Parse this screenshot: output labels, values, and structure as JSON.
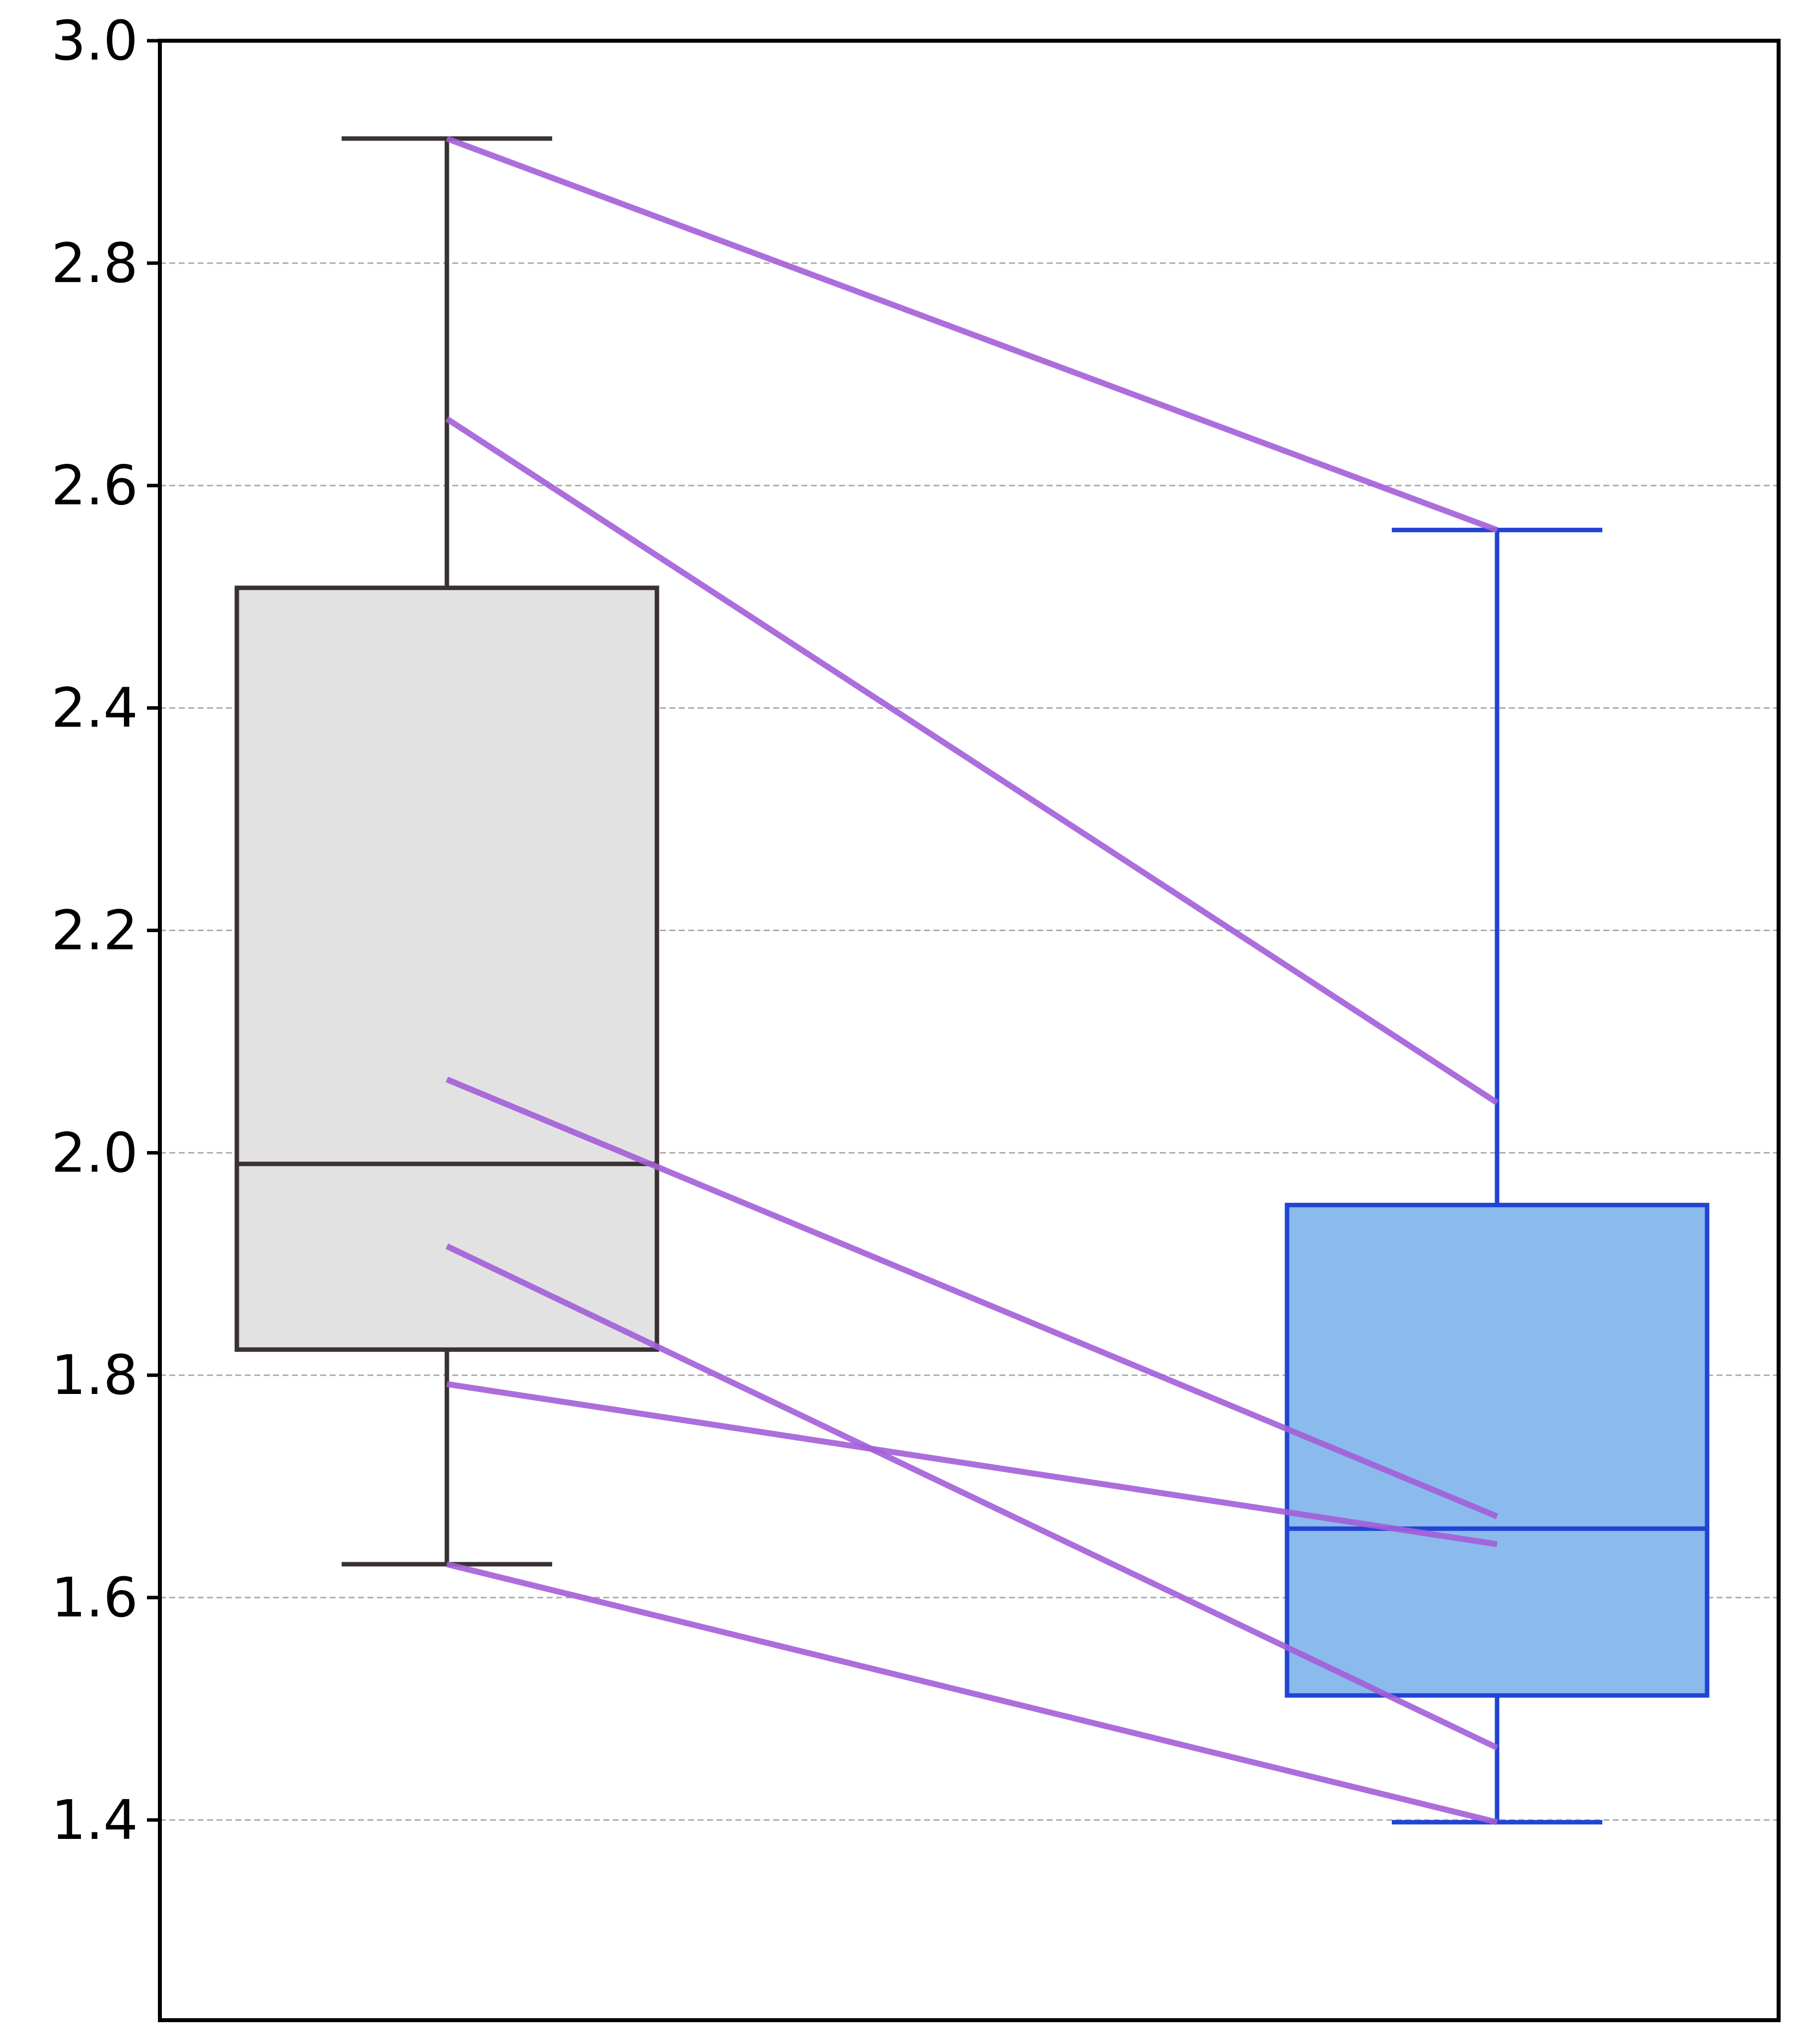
{
  "chart_data": {
    "type": "boxplot",
    "title": "",
    "xlabel": "",
    "ylabel": "",
    "ylim": [
      1.22,
      3.0
    ],
    "yticks": [
      "1.4",
      "1.6",
      "1.8",
      "2.0",
      "2.2",
      "2.4",
      "2.6",
      "2.8",
      "3.0"
    ],
    "grid": "y-dashed",
    "boxes": [
      {
        "group": 1,
        "whisker_low": 1.63,
        "q1": 1.823,
        "median": 1.99,
        "q3": 2.508,
        "whisker_high": 2.912,
        "fill": "#e2e2e2",
        "stroke": "#3a3232"
      },
      {
        "group": 2,
        "whisker_low": 1.398,
        "q1": 1.512,
        "median": 1.662,
        "q3": 1.953,
        "whisker_high": 2.56,
        "fill": "#8abbec",
        "stroke": "#2244d4"
      }
    ],
    "paired_lines": {
      "color": "#a35ed8",
      "pairs": [
        [
          2.912,
          2.56
        ],
        [
          2.66,
          2.045
        ],
        [
          2.066,
          1.673
        ],
        [
          1.916,
          1.465
        ],
        [
          1.792,
          1.648
        ],
        [
          1.63,
          1.398
        ]
      ]
    }
  }
}
